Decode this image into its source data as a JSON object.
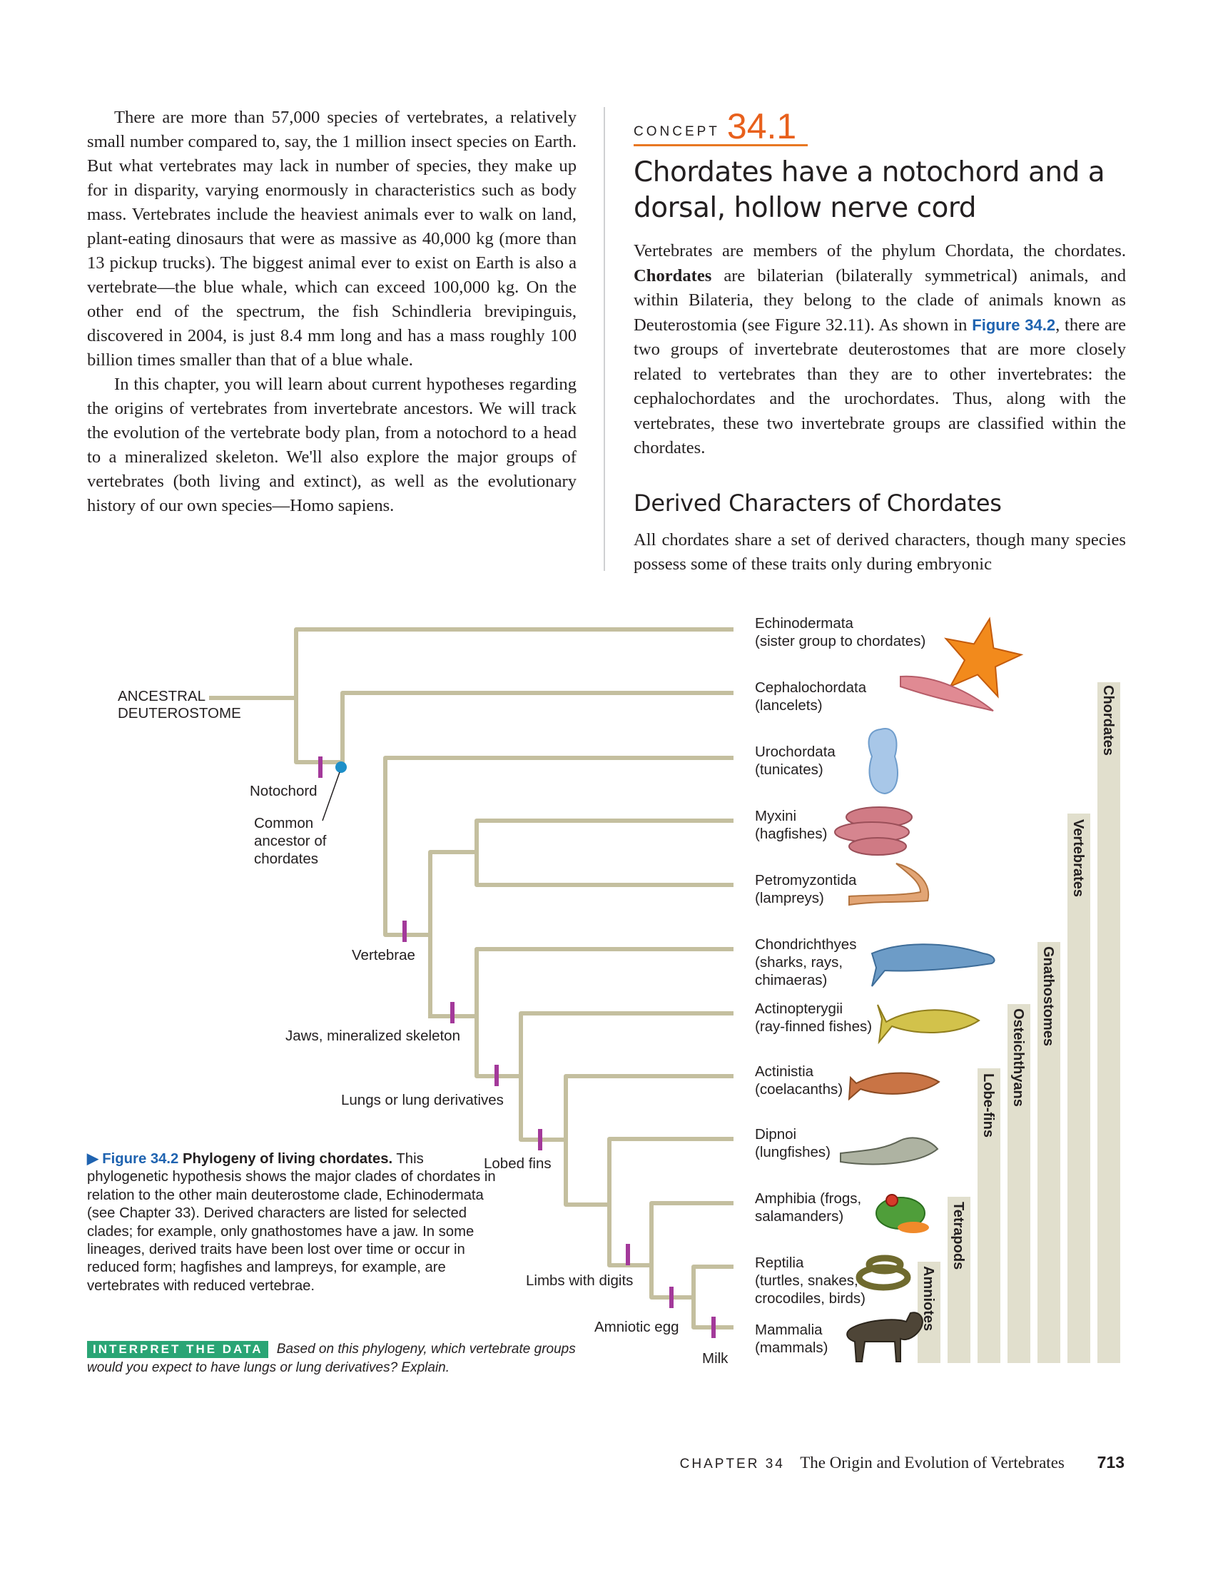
{
  "left_column": {
    "para1": "There are more than 57,000 species of vertebrates, a relatively small number compared to, say, the 1 million insect species on Earth. But what vertebrates may lack in number of species, they make up for in disparity, varying enormously in characteristics such as body mass. Vertebrates include the heaviest animals ever to walk on land, plant-eating dinosaurs that were as massive as 40,000 kg (more than 13 pickup trucks). The biggest animal ever to exist on Earth is also a vertebrate—the blue whale, which can exceed 100,000 kg. On the other end of the spectrum, the fish Schindleria brevipinguis, discovered in 2004, is just 8.4 mm long and has a mass roughly 100 billion times smaller than that of a blue whale.",
    "para2": "In this chapter, you will learn about current hypotheses regarding the origins of vertebrates from invertebrate ancestors. We will track the evolution of the vertebrate body plan, from a notochord to a head to a mineralized skeleton. We'll also explore the major groups of vertebrates (both living and extinct), as well as the evolutionary history of our own species—Homo sapiens."
  },
  "concept": {
    "label": "CONCEPT",
    "number": "34.1",
    "title": "Chordates have a notochord and a dorsal, hollow nerve cord",
    "body_a": "Vertebrates are members of the phylum Chordata, the chordates. ",
    "body_b": "Chordates",
    "body_c": " are bilaterian (bilaterally symmetrical) animals, and within Bilateria, they belong to the clade of animals known as Deuterostomia (see Figure 32.11). As shown in ",
    "body_fig": "Figure 34.2",
    "body_d": ", there are two groups of invertebrate deuterostomes that are more closely related to vertebrates than they are to other invertebrates: the cephalochordates and the urochordates. Thus, along with the vertebrates, these two invertebrate groups are classified within the chordates.",
    "section_title": "Derived Characters of Chordates",
    "section_body": "All chordates share a set of derived characters, though many species possess some of these traits only during embryonic"
  },
  "tree": {
    "root_line1": "ANCESTRAL",
    "root_line2": "DEUTEROSTOME",
    "taxa": [
      {
        "line1": "Echinodermata",
        "line2": "(sister group to chordates)",
        "line3": ""
      },
      {
        "line1": "Cephalochordata",
        "line2": "(lancelets)",
        "line3": ""
      },
      {
        "line1": "Urochordata",
        "line2": "(tunicates)",
        "line3": ""
      },
      {
        "line1": "Myxini",
        "line2": "(hagfishes)",
        "line3": ""
      },
      {
        "line1": "Petromyzontida",
        "line2": "(lampreys)",
        "line3": ""
      },
      {
        "line1": "Chondrichthyes",
        "line2": "(sharks, rays,",
        "line3": " chimaeras)"
      },
      {
        "line1": "Actinopterygii",
        "line2": "(ray-finned fishes)",
        "line3": ""
      },
      {
        "line1": "Actinistia",
        "line2": "(coelacanths)",
        "line3": ""
      },
      {
        "line1": "Dipnoi",
        "line2": "(lungfishes)",
        "line3": ""
      },
      {
        "line1": "Amphibia (frogs,",
        "line2": "salamanders)",
        "line3": ""
      },
      {
        "line1": "Reptilia",
        "line2": "(turtles, snakes,",
        "line3": "crocodiles, birds)"
      },
      {
        "line1": "Mammalia",
        "line2": "(mammals)",
        "line3": ""
      }
    ],
    "characters": {
      "notochord": "Notochord",
      "common_ancestor_1": "Common",
      "common_ancestor_2": "ancestor of",
      "common_ancestor_3": "chordates",
      "vertebrae": "Vertebrae",
      "jaws": "Jaws, mineralized skeleton",
      "lungs": "Lungs or lung derivatives",
      "lobed_fins": "Lobed fins",
      "limbs": "Limbs with digits",
      "amniotic_egg": "Amniotic egg",
      "milk": "Milk"
    },
    "clades": [
      "Chordates",
      "Vertebrates",
      "Gnathostomes",
      "Osteichthyans",
      "Lobe-fins",
      "Tetrapods",
      "Amniotes"
    ],
    "colors": {
      "branch": "#c4bf9f",
      "character_mark": "#a3399a",
      "ancestor_dot": "#1d8fc8",
      "clade_bar": "#e1dfcd"
    }
  },
  "caption": {
    "arrow": "▶",
    "fig_num": "Figure 34.2",
    "fig_title": "Phylogeny of living chordates.",
    "text": "This phylogenetic hypothesis shows the major clades of chordates in relation to the other main deuterostome clade, Echinodermata (see Chapter 33). Derived characters are listed for selected clades; for example, only gnathostomes have a jaw. In some lineages, derived traits have been lost over time or occur in reduced form; hagfishes and lampreys, for example, are vertebrates with reduced vertebrae."
  },
  "interpret": {
    "badge": "INTERPRET THE DATA",
    "question": "Based on this phylogeny, which vertebrate groups would you expect to have lungs or lung derivatives? Explain."
  },
  "footer": {
    "chapter": "CHAPTER 34",
    "title": "The Origin and Evolution of Vertebrates",
    "page": "713"
  }
}
